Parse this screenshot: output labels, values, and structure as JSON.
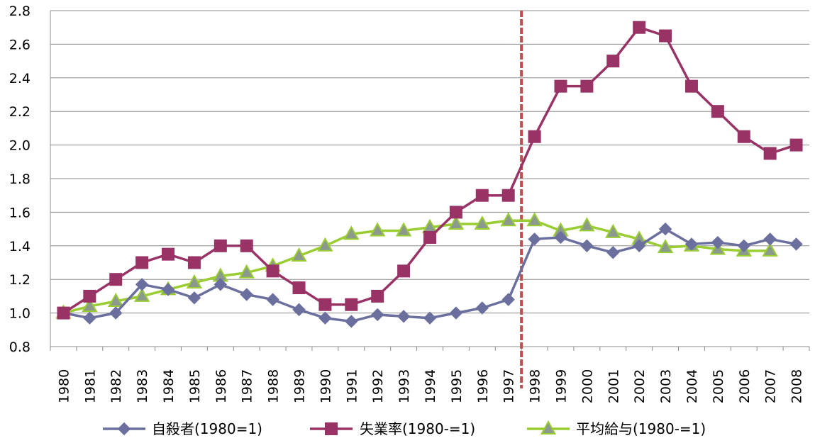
{
  "chart_data": {
    "type": "line",
    "title": "",
    "xlabel": "",
    "ylabel": "",
    "ylim": [
      0.8,
      2.8
    ],
    "yticks": [
      "0.8",
      "1.0",
      "1.2",
      "1.4",
      "1.6",
      "1.8",
      "2.0",
      "2.2",
      "2.4",
      "2.6",
      "2.8"
    ],
    "grid": "horizontal",
    "legend_position": "bottom",
    "categories": [
      "1980",
      "1981",
      "1982",
      "1983",
      "1984",
      "1985",
      "1986",
      "1987",
      "1988",
      "1989",
      "1990",
      "1991",
      "1992",
      "1993",
      "1994",
      "1995",
      "1996",
      "1997",
      "1998",
      "1999",
      "2000",
      "2001",
      "2002",
      "2003",
      "2004",
      "2005",
      "2006",
      "2007",
      "2008"
    ],
    "vertical_marker": {
      "between": [
        "1997",
        "1998"
      ],
      "color": "#c0504d"
    },
    "series": [
      {
        "name": "自殺者(1980=1)",
        "color": "#6b6f9e",
        "marker": "diamond",
        "values": [
          1.0,
          0.97,
          1.0,
          1.17,
          1.14,
          1.09,
          1.17,
          1.11,
          1.08,
          1.02,
          0.97,
          0.95,
          0.99,
          0.98,
          0.97,
          1.0,
          1.03,
          1.08,
          1.44,
          1.45,
          1.4,
          1.36,
          1.4,
          1.5,
          1.41,
          1.42,
          1.4,
          1.44,
          1.41
        ]
      },
      {
        "name": "失業率(1980-=1)",
        "color": "#993366",
        "marker": "square",
        "values": [
          1.0,
          1.1,
          1.2,
          1.3,
          1.35,
          1.3,
          1.4,
          1.4,
          1.25,
          1.15,
          1.05,
          1.05,
          1.1,
          1.25,
          1.45,
          1.6,
          1.7,
          1.7,
          2.05,
          2.35,
          2.35,
          2.5,
          2.7,
          2.65,
          2.35,
          2.2,
          2.05,
          1.95,
          2.0
        ]
      },
      {
        "name": "平均給与(1980-=1)",
        "color": "#9acd32",
        "marker": "triangle",
        "values": [
          1.0,
          1.04,
          1.07,
          1.1,
          1.14,
          1.18,
          1.22,
          1.24,
          1.28,
          1.34,
          1.4,
          1.47,
          1.49,
          1.49,
          1.51,
          1.53,
          1.53,
          1.55,
          1.55,
          1.49,
          1.52,
          1.48,
          1.44,
          1.39,
          1.4,
          1.38,
          1.37,
          1.37,
          null
        ]
      }
    ]
  }
}
